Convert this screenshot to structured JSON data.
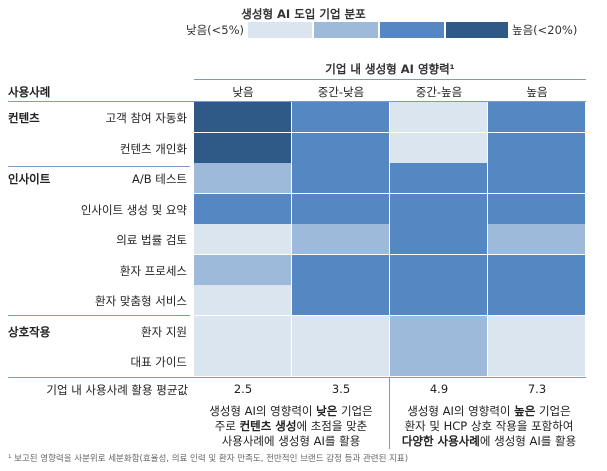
{
  "legend": {
    "title": "생성형 AI 도입 기업 분포",
    "low_label": "낮음(<5%)",
    "high_label": "높음(<20%)",
    "colors": [
      "#dbe5ef",
      "#9dbada",
      "#5588c2",
      "#2f5a87"
    ]
  },
  "column_super_header": "기업 내 생성형 AI 영향력¹",
  "row_header_title": "사용사례",
  "columns": [
    "낮음",
    "중간-낮음",
    "중간-높음",
    "높음"
  ],
  "groups": [
    {
      "label": "컨텐츠",
      "rows": [
        {
          "label": "고객 참여 자동화",
          "levels": [
            4,
            3,
            1,
            3
          ]
        },
        {
          "label": "컨텐츠 개인화",
          "levels": [
            4,
            3,
            1,
            3
          ]
        }
      ]
    },
    {
      "label": "인사이트",
      "rows": [
        {
          "label": "A/B 테스트",
          "levels": [
            2,
            3,
            3,
            3
          ]
        },
        {
          "label": "인사이트 생성 및 요약",
          "levels": [
            3,
            3,
            3,
            3
          ]
        },
        {
          "label": "의료 법률 검토",
          "levels": [
            1,
            2,
            3,
            2
          ]
        },
        {
          "label": "환자 프로세스",
          "levels": [
            2,
            3,
            3,
            3
          ]
        },
        {
          "label": "환자 맞춤형 서비스",
          "levels": [
            1,
            3,
            3,
            3
          ]
        }
      ]
    },
    {
      "label": "상호작용",
      "rows": [
        {
          "label": "환자 지원",
          "levels": [
            1,
            1,
            2,
            1
          ]
        },
        {
          "label": "대표 가이드",
          "levels": [
            1,
            1,
            2,
            1
          ]
        }
      ]
    }
  ],
  "average": {
    "label": "기업 내 사용사례 활용 평균값",
    "values": [
      "2.5",
      "3.5",
      "4.9",
      "7.3"
    ]
  },
  "notes": {
    "left": {
      "line1_a": "생성형 AI의 영향력이 ",
      "line1_b": "낮은",
      "line1_c": " 기업은",
      "line2_a": "주로 ",
      "line2_b": "컨텐츠 생성",
      "line2_c": "에 초점을 맞춘",
      "line3": "사용사례에 생성형 AI를 활용"
    },
    "right": {
      "line1_a": "생성형 AI의 영향력이 ",
      "line1_b": "높은",
      "line1_c": " 기업은",
      "line2": "환자 및 HCP 상호 작용을 포함하여",
      "line3_a": "다양한 사용사례",
      "line3_b": "에 생성형 AI를 활용"
    }
  },
  "footnote": "¹ 보고된 영향력을 사분위로 세분화함(효율성, 의료 인력 및 환자 만족도, 전반적인 브랜드 감정 등과 관련된 지표)"
}
